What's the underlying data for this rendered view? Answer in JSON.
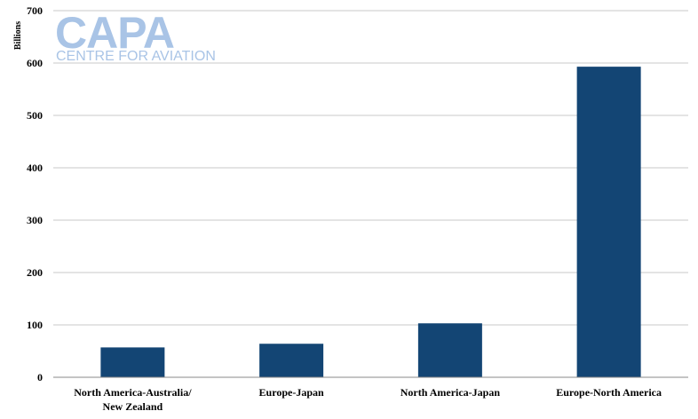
{
  "logo": {
    "main": "CAPA",
    "sub": "CENTRE FOR AVIATION",
    "color": "#a9c4e6"
  },
  "colors": {
    "bar": "#134574",
    "grid": "#c8c8c8",
    "axis": "#888888"
  },
  "chart_data": {
    "type": "bar",
    "title": "",
    "xlabel": "",
    "ylabel": "Billions",
    "categories": [
      [
        "North America-Australia/",
        "New Zealand"
      ],
      [
        "Europe-Japan"
      ],
      [
        "North America-Japan"
      ],
      [
        "Europe-North America"
      ]
    ],
    "values": [
      57,
      64,
      103,
      593
    ],
    "ylim": [
      0,
      700
    ],
    "yticks": [
      0,
      100,
      200,
      300,
      400,
      500,
      600,
      700
    ],
    "grid": true,
    "legend": "none"
  }
}
